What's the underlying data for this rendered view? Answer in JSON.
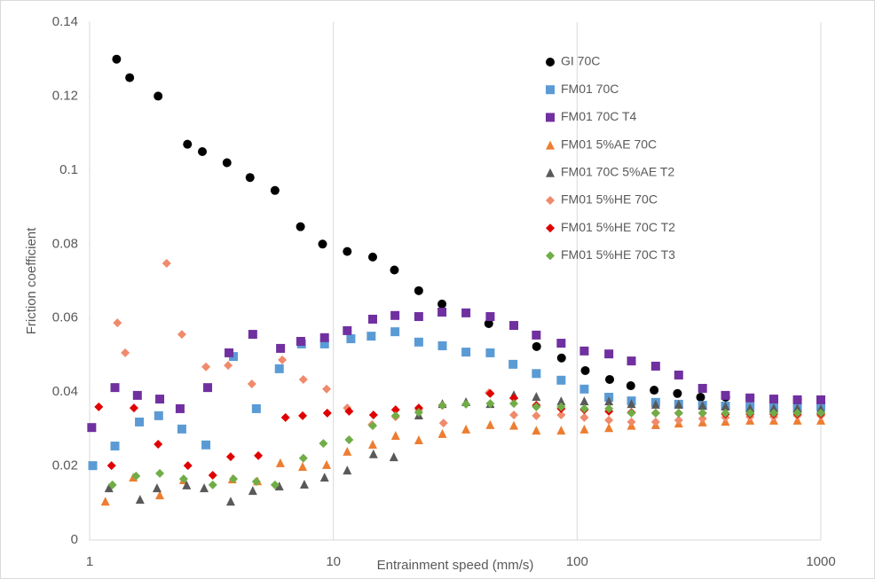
{
  "chart_data": {
    "type": "scatter",
    "x_label": "Entrainment speed (mm/s)",
    "y_label": "Friction coefficient",
    "xlim": [
      1,
      1000
    ],
    "xticks": [
      1,
      10,
      100,
      1000
    ],
    "x_log": true,
    "ylim": [
      0,
      0.14
    ],
    "yticks": [
      0,
      0.02,
      0.04,
      0.06,
      0.08,
      0.1,
      0.12,
      0.14
    ],
    "grid": "x",
    "legend": "upper right",
    "series": [
      {
        "name": "GI 70C",
        "color": "#000000",
        "marker": "circle",
        "x": [
          1.29,
          1.46,
          1.91,
          2.52,
          2.9,
          3.66,
          4.55,
          5.76,
          7.33,
          9.03,
          11.4,
          14.5,
          17.8,
          22.4,
          27.9,
          43.4,
          68.2,
          86.3,
          108,
          136,
          166,
          207,
          258,
          321,
          407,
          512,
          641,
          802,
          1000
        ],
        "values": [
          0.13,
          0.125,
          0.12,
          0.107,
          0.105,
          0.102,
          0.098,
          0.0945,
          0.0847,
          0.08,
          0.078,
          0.0765,
          0.073,
          0.0674,
          0.0638,
          0.0585,
          0.0523,
          0.0492,
          0.0458,
          0.0434,
          0.0417,
          0.0405,
          0.0396,
          0.0386,
          0.0386,
          0.0384,
          0.0381,
          0.0379,
          0.0369
        ]
      },
      {
        "name": "FM01 70C",
        "color": "#5b9bd5",
        "marker": "square",
        "x": [
          1.03,
          1.27,
          1.6,
          1.92,
          2.39,
          3.0,
          3.89,
          4.83,
          6.0,
          7.4,
          9.2,
          11.8,
          14.3,
          17.9,
          22.4,
          28,
          35,
          44,
          54.6,
          68,
          86,
          107,
          135,
          167,
          210,
          261,
          327,
          406,
          512,
          641,
          801,
          1000
        ],
        "values": [
          0.0201,
          0.0254,
          0.0319,
          0.0336,
          0.03,
          0.0257,
          0.0496,
          0.0355,
          0.0463,
          0.053,
          0.053,
          0.0544,
          0.0551,
          0.0563,
          0.0535,
          0.0525,
          0.0508,
          0.0506,
          0.0475,
          0.045,
          0.0432,
          0.0408,
          0.0386,
          0.0376,
          0.0372,
          0.0367,
          0.0364,
          0.0362,
          0.036,
          0.036,
          0.0357,
          0.036
        ]
      },
      {
        "name": "FM01 70C T4",
        "color": "#7030a0",
        "marker": "square",
        "x": [
          1.02,
          1.27,
          1.57,
          1.94,
          2.35,
          3.05,
          3.73,
          4.67,
          6.07,
          7.35,
          9.2,
          11.4,
          14.5,
          17.9,
          22.4,
          27.9,
          35,
          44,
          55,
          68,
          86,
          107,
          135,
          167,
          210,
          261,
          327,
          406,
          512,
          641,
          801,
          1000
        ],
        "values": [
          0.0304,
          0.0412,
          0.0391,
          0.0381,
          0.0355,
          0.0412,
          0.0506,
          0.0556,
          0.0518,
          0.0537,
          0.0547,
          0.0566,
          0.0597,
          0.0607,
          0.0604,
          0.0616,
          0.0614,
          0.0604,
          0.058,
          0.0554,
          0.0532,
          0.0511,
          0.0503,
          0.0484,
          0.047,
          0.0446,
          0.041,
          0.0391,
          0.0384,
          0.0381,
          0.0379,
          0.0379
        ]
      },
      {
        "name": "FM01 5%AE 70C",
        "color": "#ed7d31",
        "marker": "triangle",
        "x": [
          1.16,
          1.51,
          1.94,
          2.43,
          3.85,
          4.88,
          6.06,
          7.48,
          9.38,
          11.4,
          14.5,
          18,
          22.4,
          28,
          35,
          44,
          55,
          68,
          86,
          107,
          135,
          167,
          210,
          261,
          327,
          406,
          512,
          641,
          801,
          1000
        ],
        "values": [
          0.0105,
          0.017,
          0.0122,
          0.0163,
          0.0165,
          0.016,
          0.0209,
          0.0199,
          0.0204,
          0.024,
          0.0259,
          0.0283,
          0.0271,
          0.0288,
          0.03,
          0.0312,
          0.031,
          0.0297,
          0.0297,
          0.03,
          0.0304,
          0.031,
          0.0312,
          0.0316,
          0.0319,
          0.0321,
          0.0324,
          0.0324,
          0.0324,
          0.0324
        ]
      },
      {
        "name": "FM01 70C 5%AE T2",
        "color": "#595959",
        "marker": "triangle",
        "x": [
          1.2,
          1.61,
          1.89,
          2.5,
          2.95,
          3.79,
          4.67,
          6.0,
          7.6,
          9.2,
          11.4,
          14.6,
          17.7,
          22.4,
          28,
          35,
          44,
          55,
          68,
          86,
          107,
          135,
          167,
          210,
          261,
          327,
          406,
          512,
          641,
          801,
          1000
        ],
        "values": [
          0.0141,
          0.011,
          0.0141,
          0.0149,
          0.0141,
          0.0105,
          0.0134,
          0.0146,
          0.0151,
          0.017,
          0.0189,
          0.0233,
          0.0225,
          0.0338,
          0.0369,
          0.0374,
          0.0369,
          0.0393,
          0.0388,
          0.0376,
          0.0376,
          0.0376,
          0.0369,
          0.0367,
          0.0367,
          0.0364,
          0.0362,
          0.0357,
          0.0357,
          0.0357,
          0.0355
        ]
      },
      {
        "name": "FM01 5%HE 70C",
        "color": "#f08a6c",
        "marker": "diamond",
        "x": [
          1.3,
          1.4,
          2.07,
          2.39,
          3.0,
          3.7,
          4.63,
          6.17,
          7.53,
          9.38,
          11.4,
          14.4,
          18,
          22.4,
          28.3,
          43.5,
          55,
          68,
          86,
          107,
          135,
          167,
          210,
          261,
          327,
          406,
          512,
          641,
          801,
          1000
        ],
        "values": [
          0.0587,
          0.0506,
          0.0748,
          0.0556,
          0.0468,
          0.0472,
          0.0422,
          0.0487,
          0.0434,
          0.0408,
          0.0357,
          0.0312,
          0.0333,
          0.0352,
          0.0316,
          0.0398,
          0.0338,
          0.0336,
          0.0338,
          0.0331,
          0.0324,
          0.0319,
          0.0319,
          0.0324,
          0.0328,
          0.0331,
          0.0333,
          0.0333,
          0.0336,
          0.0336
        ]
      },
      {
        "name": "FM01 5%HE 70C T2",
        "color": "#e00000",
        "marker": "diamond",
        "x": [
          1.09,
          1.23,
          1.52,
          1.91,
          2.53,
          3.2,
          3.79,
          4.92,
          6.36,
          7.48,
          9.44,
          11.6,
          14.6,
          18,
          22.4,
          28,
          44,
          55,
          68,
          86,
          107,
          135,
          167,
          210,
          261,
          327,
          406,
          512,
          641,
          801,
          1000
        ],
        "values": [
          0.036,
          0.0201,
          0.0357,
          0.0259,
          0.0201,
          0.0175,
          0.0225,
          0.0228,
          0.0331,
          0.0336,
          0.0343,
          0.0348,
          0.0338,
          0.0352,
          0.0357,
          0.0364,
          0.0396,
          0.0384,
          0.0364,
          0.0355,
          0.0352,
          0.0348,
          0.0345,
          0.0343,
          0.0343,
          0.0343,
          0.034,
          0.034,
          0.034,
          0.034,
          0.034
        ]
      },
      {
        "name": "FM01 5%HE 70C T3",
        "color": "#70ad47",
        "marker": "diamond",
        "x": [
          1.24,
          1.55,
          1.94,
          2.43,
          3.2,
          3.89,
          4.83,
          5.76,
          7.53,
          9.1,
          11.6,
          14.5,
          18,
          22.4,
          28,
          35,
          44,
          55,
          68,
          86,
          107,
          135,
          167,
          210,
          261,
          327,
          406,
          512,
          641,
          801,
          1000
        ],
        "values": [
          0.0149,
          0.0173,
          0.018,
          0.0165,
          0.0149,
          0.0165,
          0.0158,
          0.0149,
          0.0221,
          0.0261,
          0.0271,
          0.0309,
          0.0336,
          0.0345,
          0.0364,
          0.0367,
          0.0369,
          0.0369,
          0.036,
          0.036,
          0.0355,
          0.0355,
          0.0343,
          0.0343,
          0.0343,
          0.0343,
          0.0343,
          0.0343,
          0.0343,
          0.0343,
          0.0343
        ]
      }
    ]
  }
}
